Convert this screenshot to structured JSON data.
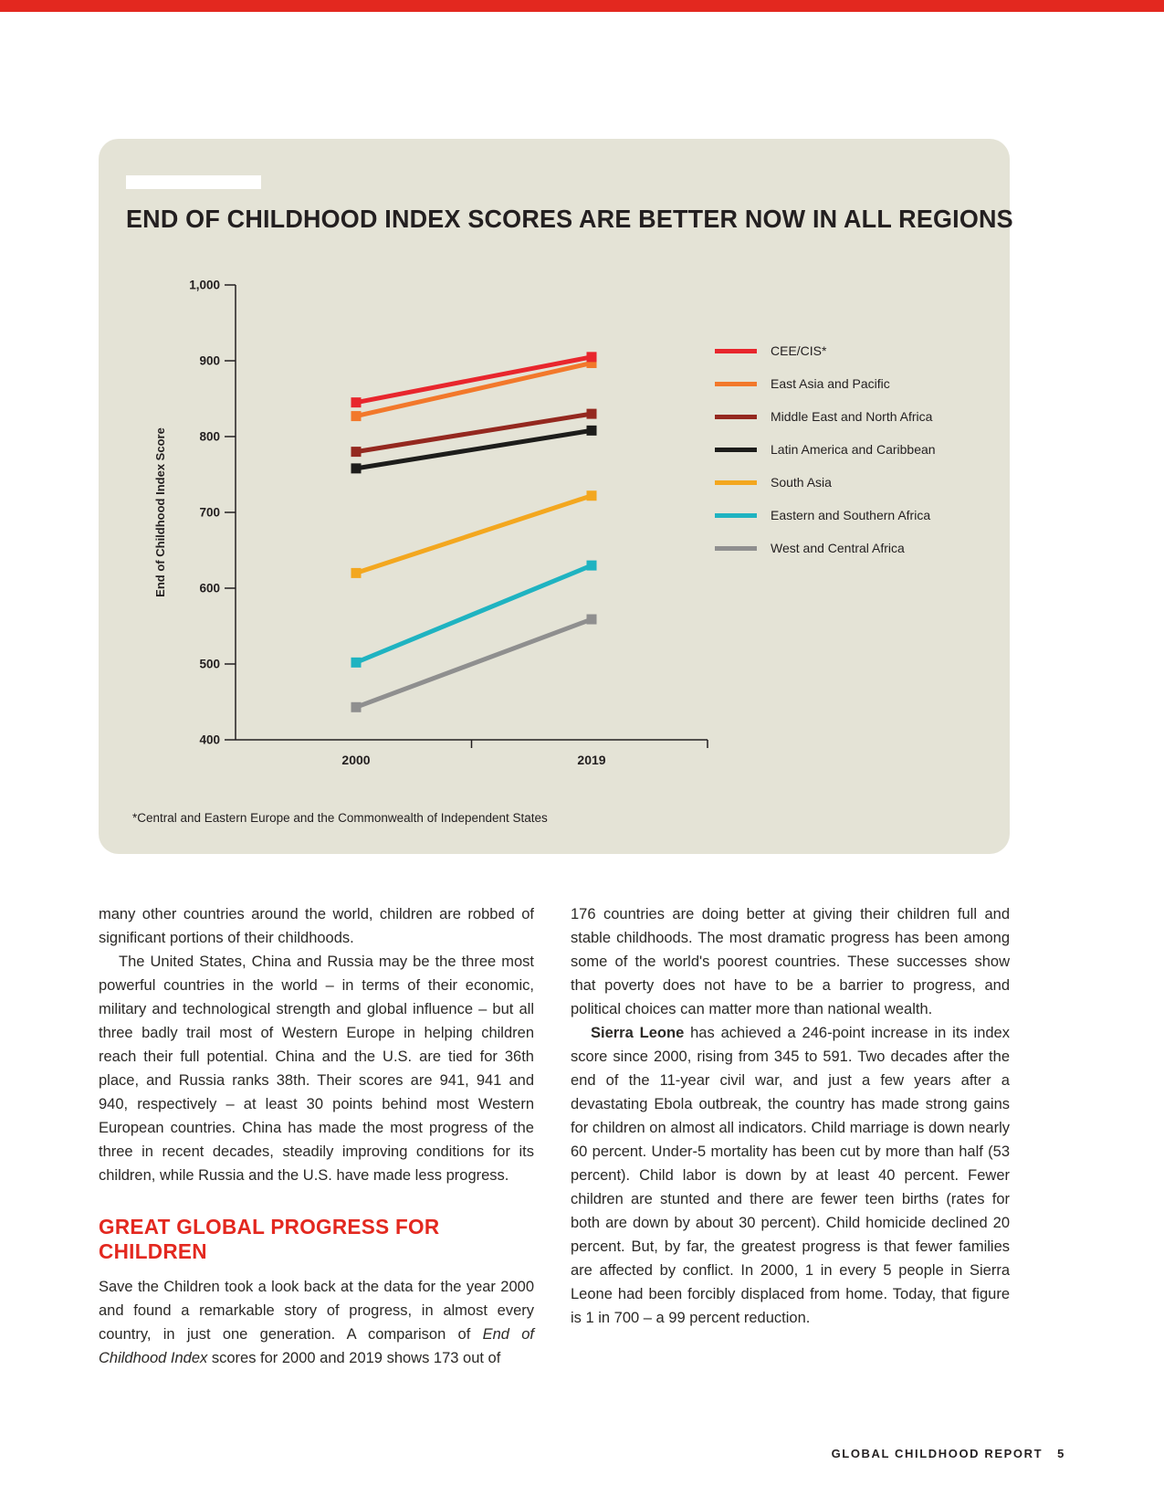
{
  "page": {
    "accent_color": "#e3281f",
    "panel_color": "#e4e3d6",
    "footer": {
      "label": "GLOBAL CHILDHOOD REPORT",
      "page_number": "5"
    }
  },
  "chart_data": {
    "type": "line",
    "title": "END OF CHILDHOOD INDEX SCORES ARE BETTER NOW IN ALL REGIONS",
    "ylabel": "End of Childhood Index Score",
    "categories": [
      "2000",
      "2019"
    ],
    "ylim": [
      400,
      1000
    ],
    "yticks": [
      1000,
      900,
      800,
      700,
      600,
      500,
      400
    ],
    "ytick_labels": [
      "1,000",
      "900",
      "800",
      "700",
      "600",
      "500",
      "400"
    ],
    "grid": false,
    "legend_position": "right",
    "series": [
      {
        "name": "CEE/CIS*",
        "color": "#e8262d",
        "values": [
          845,
          905
        ]
      },
      {
        "name": "East Asia and Pacific",
        "color": "#f2782b",
        "values": [
          827,
          897
        ]
      },
      {
        "name": "Middle East and North Africa",
        "color": "#94281f",
        "values": [
          780,
          830
        ]
      },
      {
        "name": "Latin America and Caribbean",
        "color": "#1d1d1b",
        "values": [
          758,
          808
        ]
      },
      {
        "name": "South Asia",
        "color": "#f3a71f",
        "values": [
          620,
          722
        ]
      },
      {
        "name": "Eastern and Southern Africa",
        "color": "#1fb3c1",
        "values": [
          502,
          630
        ]
      },
      {
        "name": "West and Central Africa",
        "color": "#8f8f8f",
        "values": [
          443,
          559
        ]
      }
    ],
    "footnote": "*Central and Eastern Europe and the Commonwealth of Independent States"
  },
  "columns": {
    "left": {
      "blocks": [
        {
          "type": "p",
          "indent": false,
          "runs": [
            {
              "t": "many other countries around the world, children are robbed of significant portions of their childhoods."
            }
          ]
        },
        {
          "type": "p",
          "indent": true,
          "runs": [
            {
              "t": "The United States, China and Russia may be the three most powerful countries in the world – in terms of their economic, military and technological strength and global influence – but all three badly trail most of Western Europe in helping children reach their full potential. China and the U.S. are tied for 36th place, and Russia ranks 38th. Their scores are 941, 941 and 940, respectively – at least 30 points behind most Western European countries. China has made the most progress of the three in recent decades, steadily improving conditions for its children, while Russia and the U.S. have made less progress."
            }
          ]
        },
        {
          "type": "h2",
          "text": "GREAT GLOBAL PROGRESS FOR CHILDREN"
        },
        {
          "type": "p",
          "indent": false,
          "runs": [
            {
              "t": "Save the Children took a look back at the data for the year 2000 and found a remarkable story of progress, in almost every country, in just one generation. A comparison of "
            },
            {
              "t": "End of Childhood Index",
              "i": true
            },
            {
              "t": " scores for 2000 and 2019 shows 173 out of"
            }
          ]
        }
      ]
    },
    "right": {
      "blocks": [
        {
          "type": "p",
          "indent": false,
          "runs": [
            {
              "t": "176 countries are doing better at giving their children full and stable childhoods. The most dramatic progress has been among some of the world's poorest countries. These successes show that poverty does not have to be a barrier to progress, and political choices can matter more than national wealth."
            }
          ]
        },
        {
          "type": "p",
          "indent": true,
          "runs": [
            {
              "t": "Sierra Leone",
              "b": true
            },
            {
              "t": " has achieved a 246-point increase in its index score since 2000, rising from 345 to 591. Two decades after the end of the 11-year civil war, and just a few years after a devastating Ebola outbreak, the country has made strong gains for children on almost all indicators. Child marriage is down nearly 60 percent. Under-5 mortality has been cut by more than half (53 percent). Child labor is down by at least 40 percent. Fewer children are stunted and there are fewer teen births (rates for both are down by about 30 percent). Child homicide declined 20 percent. But, by far, the greatest progress is that fewer families are affected by conflict. In 2000, 1 in every 5 people in Sierra Leone had been forcibly displaced from home. Today, that figure is 1 in 700 – a 99 percent reduction."
            }
          ]
        }
      ]
    }
  }
}
